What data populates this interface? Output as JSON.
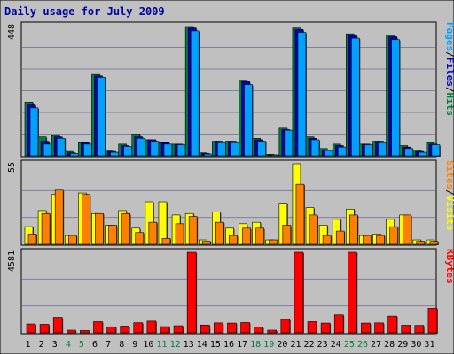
{
  "chart_data": {
    "type": "bar",
    "title": "Daily usage for July 2009",
    "categories": [
      "1",
      "2",
      "3",
      "4",
      "5",
      "6",
      "7",
      "8",
      "9",
      "10",
      "11",
      "12",
      "13",
      "14",
      "15",
      "16",
      "17",
      "18",
      "19",
      "20",
      "21",
      "22",
      "23",
      "24",
      "25",
      "26",
      "27",
      "28",
      "29",
      "30",
      "31"
    ],
    "weekend_days": [
      "4",
      "5",
      "11",
      "12",
      "18",
      "19",
      "25",
      "26"
    ],
    "panels": [
      {
        "id": "hits-files-pages",
        "ymax_label": "448",
        "ylim": [
          0,
          448
        ],
        "right_label": [
          "Pages",
          "/",
          "Files",
          "/",
          "Hits"
        ],
        "right_label_colors": [
          "#00a0ff",
          "#000000",
          "#0000c0",
          "#000000",
          "#008040"
        ],
        "series": [
          {
            "name": "Hits",
            "color": "#008040",
            "values": [
              185,
              65,
              70,
              15,
              45,
              280,
              20,
              40,
              75,
              55,
              45,
              40,
              445,
              10,
              50,
              50,
              260,
              60,
              5,
              95,
              440,
              65,
              25,
              40,
              420,
              40,
              50,
              415,
              35,
              20,
              45
            ]
          },
          {
            "name": "Files",
            "color": "#0000c0",
            "values": [
              175,
              50,
              65,
              10,
              45,
              275,
              15,
              35,
              65,
              55,
              45,
              40,
              440,
              8,
              50,
              50,
              255,
              55,
              3,
              90,
              435,
              60,
              20,
              35,
              415,
              40,
              50,
              410,
              30,
              15,
              40
            ]
          },
          {
            "name": "Pages",
            "color": "#00a0ff",
            "values": [
              165,
              40,
              60,
              8,
              40,
              270,
              12,
              32,
              60,
              50,
              40,
              38,
              430,
              6,
              45,
              45,
              245,
              50,
              2,
              88,
              425,
              55,
              18,
              30,
              405,
              38,
              45,
              400,
              25,
              12,
              38
            ]
          }
        ]
      },
      {
        "id": "visits-sites",
        "ymax_label": "55",
        "ylim": [
          0,
          55
        ],
        "right_label": [
          "Sites",
          "/",
          "Visits"
        ],
        "right_label_colors": [
          "#ff8000",
          "#000000",
          "#ffff00"
        ],
        "series": [
          {
            "name": "Visits",
            "color": "#ffff00",
            "values": [
              12,
              23,
              34,
              6,
              35,
              21,
              13,
              23,
              11,
              29,
              29,
              20,
              21,
              3,
              22,
              11,
              14,
              15,
              3,
              28,
              55,
              25,
              13,
              17,
              24,
              6,
              7,
              17,
              20,
              3,
              3
            ]
          },
          {
            "name": "Sites",
            "color": "#ff8000",
            "values": [
              7,
              21,
              37,
              6,
              34,
              21,
              13,
              21,
              8,
              15,
              4,
              14,
              19,
              2,
              15,
              6,
              11,
              11,
              3,
              13,
              41,
              20,
              6,
              9,
              20,
              6,
              6,
              12,
              20,
              2,
              2
            ]
          }
        ]
      },
      {
        "id": "kbytes",
        "ymax_label": "4581",
        "ylim": [
          0,
          4581
        ],
        "right_label": [
          "KBytes"
        ],
        "right_label_colors": [
          "#ff0000"
        ],
        "series": [
          {
            "name": "KBytes",
            "color": "#ff0000",
            "values": [
              500,
              480,
              880,
              150,
              130,
              630,
              340,
              380,
              570,
              660,
              350,
              400,
              4581,
              440,
              560,
              550,
              580,
              320,
              150,
              760,
              4581,
              630,
              550,
              1020,
              4581,
              550,
              560,
              950,
              430,
              420,
              1390
            ]
          }
        ]
      }
    ]
  }
}
